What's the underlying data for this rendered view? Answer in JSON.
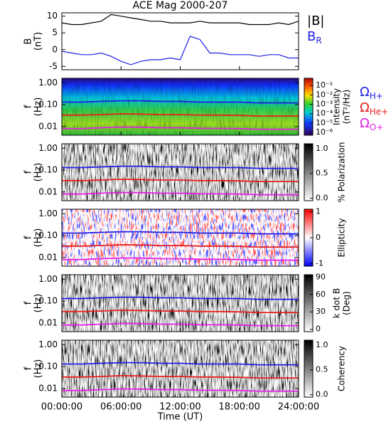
{
  "chart_data": [
    {
      "type": "line",
      "title": "ACE Mag 2000-207",
      "ylabel": [
        "B",
        "(nT)"
      ],
      "x": [
        0,
        1,
        2,
        3,
        4,
        5,
        6,
        7,
        8,
        9,
        10,
        11,
        12,
        13,
        14,
        15,
        16,
        17,
        18,
        19,
        20,
        21,
        22,
        23,
        24
      ],
      "xlim": [
        0,
        24
      ],
      "ylim": [
        -6,
        11
      ],
      "yticks": [
        -5,
        0,
        5,
        10
      ],
      "series": [
        {
          "name": "|B|",
          "color": "#000000",
          "values": [
            8,
            7.5,
            7.5,
            8,
            8.5,
            10.5,
            10,
            9.5,
            9,
            8.5,
            8.5,
            8,
            8,
            8,
            8.5,
            8,
            8,
            8,
            8,
            7.5,
            7.5,
            7.5,
            8,
            7.5,
            8.5
          ]
        },
        {
          "name": "B",
          "sub": "R",
          "color": "#1f1fe6",
          "values": [
            -0.5,
            -1,
            -1.5,
            -1.5,
            -1,
            -2,
            -3.5,
            -4.5,
            -3.5,
            -3,
            -3,
            -2.5,
            -3,
            4,
            3,
            -1,
            -1,
            -1.5,
            -1.5,
            -1.5,
            -2,
            -1.5,
            -1.5,
            -2.5,
            -2.5
          ]
        }
      ]
    },
    {
      "type": "spectrogram",
      "colormap": "rainbow",
      "ylabel": [
        "f",
        "(Hz)"
      ],
      "log": true,
      "x": [
        0,
        2,
        4,
        6,
        8,
        10,
        12,
        14,
        16,
        18,
        20,
        22,
        24
      ],
      "xlim": [
        0,
        24
      ],
      "ylim": [
        0.004,
        1.6
      ],
      "yticks": [
        {
          "value": 1,
          "label": "1.00"
        },
        {
          "value": 0.1,
          "label": "0.10"
        },
        {
          "value": 0.01,
          "label": "0.01"
        }
      ],
      "series": [
        {
          "label": "Ω",
          "sub": "H+",
          "color": "#1f1fe6",
          "values": [
            0.13,
            0.13,
            0.14,
            0.15,
            0.15,
            0.14,
            0.14,
            0.13,
            0.13,
            0.13,
            0.12,
            0.12,
            0.12
          ]
        },
        {
          "label": "Ω",
          "sub": "He+",
          "color": "#e61f1f",
          "values": [
            0.033,
            0.033,
            0.035,
            0.038,
            0.037,
            0.035,
            0.035,
            0.033,
            0.033,
            0.032,
            0.03,
            0.03,
            0.03
          ]
        },
        {
          "label": "Ω",
          "sub": "O+",
          "color": "#e61fe6",
          "values": [
            0.008,
            0.008,
            0.0088,
            0.0095,
            0.0093,
            0.0088,
            0.0088,
            0.0083,
            0.0082,
            0.008,
            0.0075,
            0.0075,
            0.0075
          ]
        }
      ],
      "colorbar": {
        "label": [
          "Intensity",
          "(nT²/Hz)"
        ],
        "log": true,
        "lim": [
          5e-07,
          0.6
        ],
        "ticks": [
          {
            "value": 0.1,
            "label": "10⁻¹"
          },
          {
            "value": 0.01,
            "label": "10⁻²"
          },
          {
            "value": 0.001,
            "label": "10⁻³"
          },
          {
            "value": 0.0001,
            "label": "10⁻⁴"
          },
          {
            "value": 1e-05,
            "label": "10⁻⁵"
          },
          {
            "value": 1e-06,
            "label": "10⁻⁶"
          }
        ]
      }
    },
    {
      "type": "spectrogram",
      "colormap": "gray",
      "ylabel": [
        "f",
        "(Hz)"
      ],
      "log": true,
      "x": [
        0,
        2,
        4,
        6,
        8,
        10,
        12,
        14,
        16,
        18,
        20,
        22,
        24
      ],
      "xlim": [
        0,
        24
      ],
      "ylim": [
        0.004,
        1.6
      ],
      "yticks": [
        {
          "value": 1,
          "label": "1.00"
        },
        {
          "value": 0.1,
          "label": "0.10"
        },
        {
          "value": 0.01,
          "label": "0.01"
        }
      ],
      "series": [
        {
          "color": "#1f1fe6",
          "values": [
            0.13,
            0.13,
            0.14,
            0.15,
            0.15,
            0.14,
            0.14,
            0.13,
            0.13,
            0.13,
            0.12,
            0.12,
            0.12
          ]
        },
        {
          "color": "#e61f1f",
          "values": [
            0.033,
            0.033,
            0.035,
            0.038,
            0.037,
            0.035,
            0.035,
            0.033,
            0.033,
            0.032,
            0.03,
            0.03,
            0.03
          ]
        },
        {
          "color": "#e61fe6",
          "values": [
            0.008,
            0.008,
            0.0088,
            0.0095,
            0.0093,
            0.0088,
            0.0088,
            0.0083,
            0.0082,
            0.008,
            0.0075,
            0.0075,
            0.0075
          ]
        }
      ],
      "colorbar": {
        "label": [
          "% Polarization"
        ],
        "lim": [
          -0.05,
          1.1
        ],
        "ticks": [
          {
            "value": 1,
            "label": "1.0"
          },
          {
            "value": 0.5,
            "label": "0.5"
          },
          {
            "value": 0,
            "label": "0.0"
          }
        ]
      }
    },
    {
      "type": "spectrogram",
      "colormap": "bwr",
      "ylabel": [
        "f",
        "(Hz)"
      ],
      "log": true,
      "x": [
        0,
        2,
        4,
        6,
        8,
        10,
        12,
        14,
        16,
        18,
        20,
        22,
        24
      ],
      "xlim": [
        0,
        24
      ],
      "ylim": [
        0.004,
        1.6
      ],
      "yticks": [
        {
          "value": 1,
          "label": "1.00"
        },
        {
          "value": 0.1,
          "label": "0.10"
        },
        {
          "value": 0.01,
          "label": "0.01"
        }
      ],
      "series": [
        {
          "color": "#1f1fe6",
          "values": [
            0.13,
            0.13,
            0.14,
            0.15,
            0.15,
            0.14,
            0.14,
            0.13,
            0.13,
            0.13,
            0.12,
            0.12,
            0.12
          ]
        },
        {
          "color": "#e61f1f",
          "values": [
            0.033,
            0.033,
            0.035,
            0.038,
            0.037,
            0.035,
            0.035,
            0.033,
            0.033,
            0.032,
            0.03,
            0.03,
            0.03
          ]
        },
        {
          "color": "#e61fe6",
          "values": [
            0.008,
            0.008,
            0.0088,
            0.0095,
            0.0093,
            0.0088,
            0.0088,
            0.0083,
            0.0082,
            0.008,
            0.0075,
            0.0075,
            0.0075
          ]
        }
      ],
      "colorbar": {
        "label": [
          "Ellipticity"
        ],
        "lim": [
          -1.1,
          1.1
        ],
        "ticks": [
          1,
          0,
          -1
        ]
      }
    },
    {
      "type": "spectrogram",
      "colormap": "gray",
      "ylabel": [
        "f",
        "(Hz)"
      ],
      "log": true,
      "x": [
        0,
        2,
        4,
        6,
        8,
        10,
        12,
        14,
        16,
        18,
        20,
        22,
        24
      ],
      "xlim": [
        0,
        24
      ],
      "ylim": [
        0.004,
        1.6
      ],
      "yticks": [
        {
          "value": 1,
          "label": "1.00"
        },
        {
          "value": 0.1,
          "label": "0.10"
        },
        {
          "value": 0.01,
          "label": "0.01"
        }
      ],
      "series": [
        {
          "color": "#1f1fe6",
          "values": [
            0.13,
            0.13,
            0.14,
            0.15,
            0.15,
            0.14,
            0.14,
            0.13,
            0.13,
            0.13,
            0.12,
            0.12,
            0.12
          ]
        },
        {
          "color": "#e61f1f",
          "values": [
            0.033,
            0.033,
            0.035,
            0.038,
            0.037,
            0.035,
            0.035,
            0.033,
            0.033,
            0.032,
            0.03,
            0.03,
            0.03
          ]
        },
        {
          "color": "#e61fe6",
          "values": [
            0.008,
            0.008,
            0.0088,
            0.0095,
            0.0093,
            0.0088,
            0.0088,
            0.0083,
            0.0082,
            0.008,
            0.0075,
            0.0075,
            0.0075
          ]
        }
      ],
      "colorbar": {
        "label": [
          "k dot B",
          "(Deg)"
        ],
        "lim": [
          -4,
          94
        ],
        "ticks": [
          90,
          60,
          30,
          0
        ]
      }
    },
    {
      "type": "spectrogram",
      "colormap": "gray",
      "ylabel": [
        "f",
        "(Hz)"
      ],
      "log": true,
      "x": [
        0,
        2,
        4,
        6,
        8,
        10,
        12,
        14,
        16,
        18,
        20,
        22,
        24
      ],
      "xlim": [
        0,
        24
      ],
      "ylim": [
        0.004,
        1.6
      ],
      "yticks": [
        {
          "value": 1,
          "label": "1.00"
        },
        {
          "value": 0.1,
          "label": "0.10"
        },
        {
          "value": 0.01,
          "label": "0.01"
        }
      ],
      "xticks": [
        {
          "value": 0,
          "label": "00:00:00"
        },
        {
          "value": 6,
          "label": "06:00:00"
        },
        {
          "value": 12,
          "label": "12:00:00"
        },
        {
          "value": 18,
          "label": "18:00:00"
        },
        {
          "value": 24,
          "label": "24:00:00"
        }
      ],
      "xlabel": "Time (UT)",
      "series": [
        {
          "color": "#1f1fe6",
          "values": [
            0.13,
            0.13,
            0.14,
            0.15,
            0.15,
            0.14,
            0.14,
            0.13,
            0.13,
            0.13,
            0.12,
            0.12,
            0.12
          ]
        },
        {
          "color": "#e61f1f",
          "values": [
            0.033,
            0.033,
            0.035,
            0.038,
            0.037,
            0.035,
            0.035,
            0.033,
            0.033,
            0.032,
            0.03,
            0.03,
            0.03
          ]
        },
        {
          "color": "#e61fe6",
          "values": [
            0.008,
            0.008,
            0.0088,
            0.0095,
            0.0093,
            0.0088,
            0.0088,
            0.0083,
            0.0082,
            0.008,
            0.0075,
            0.0075,
            0.0075
          ]
        }
      ],
      "colorbar": {
        "label": [
          "Coherency"
        ],
        "lim": [
          -0.05,
          1.1
        ],
        "ticks": [
          {
            "value": 1,
            "label": "1.0"
          },
          {
            "value": 0.5,
            "label": "0.5"
          },
          {
            "value": 0,
            "label": "0.0"
          }
        ]
      }
    }
  ]
}
